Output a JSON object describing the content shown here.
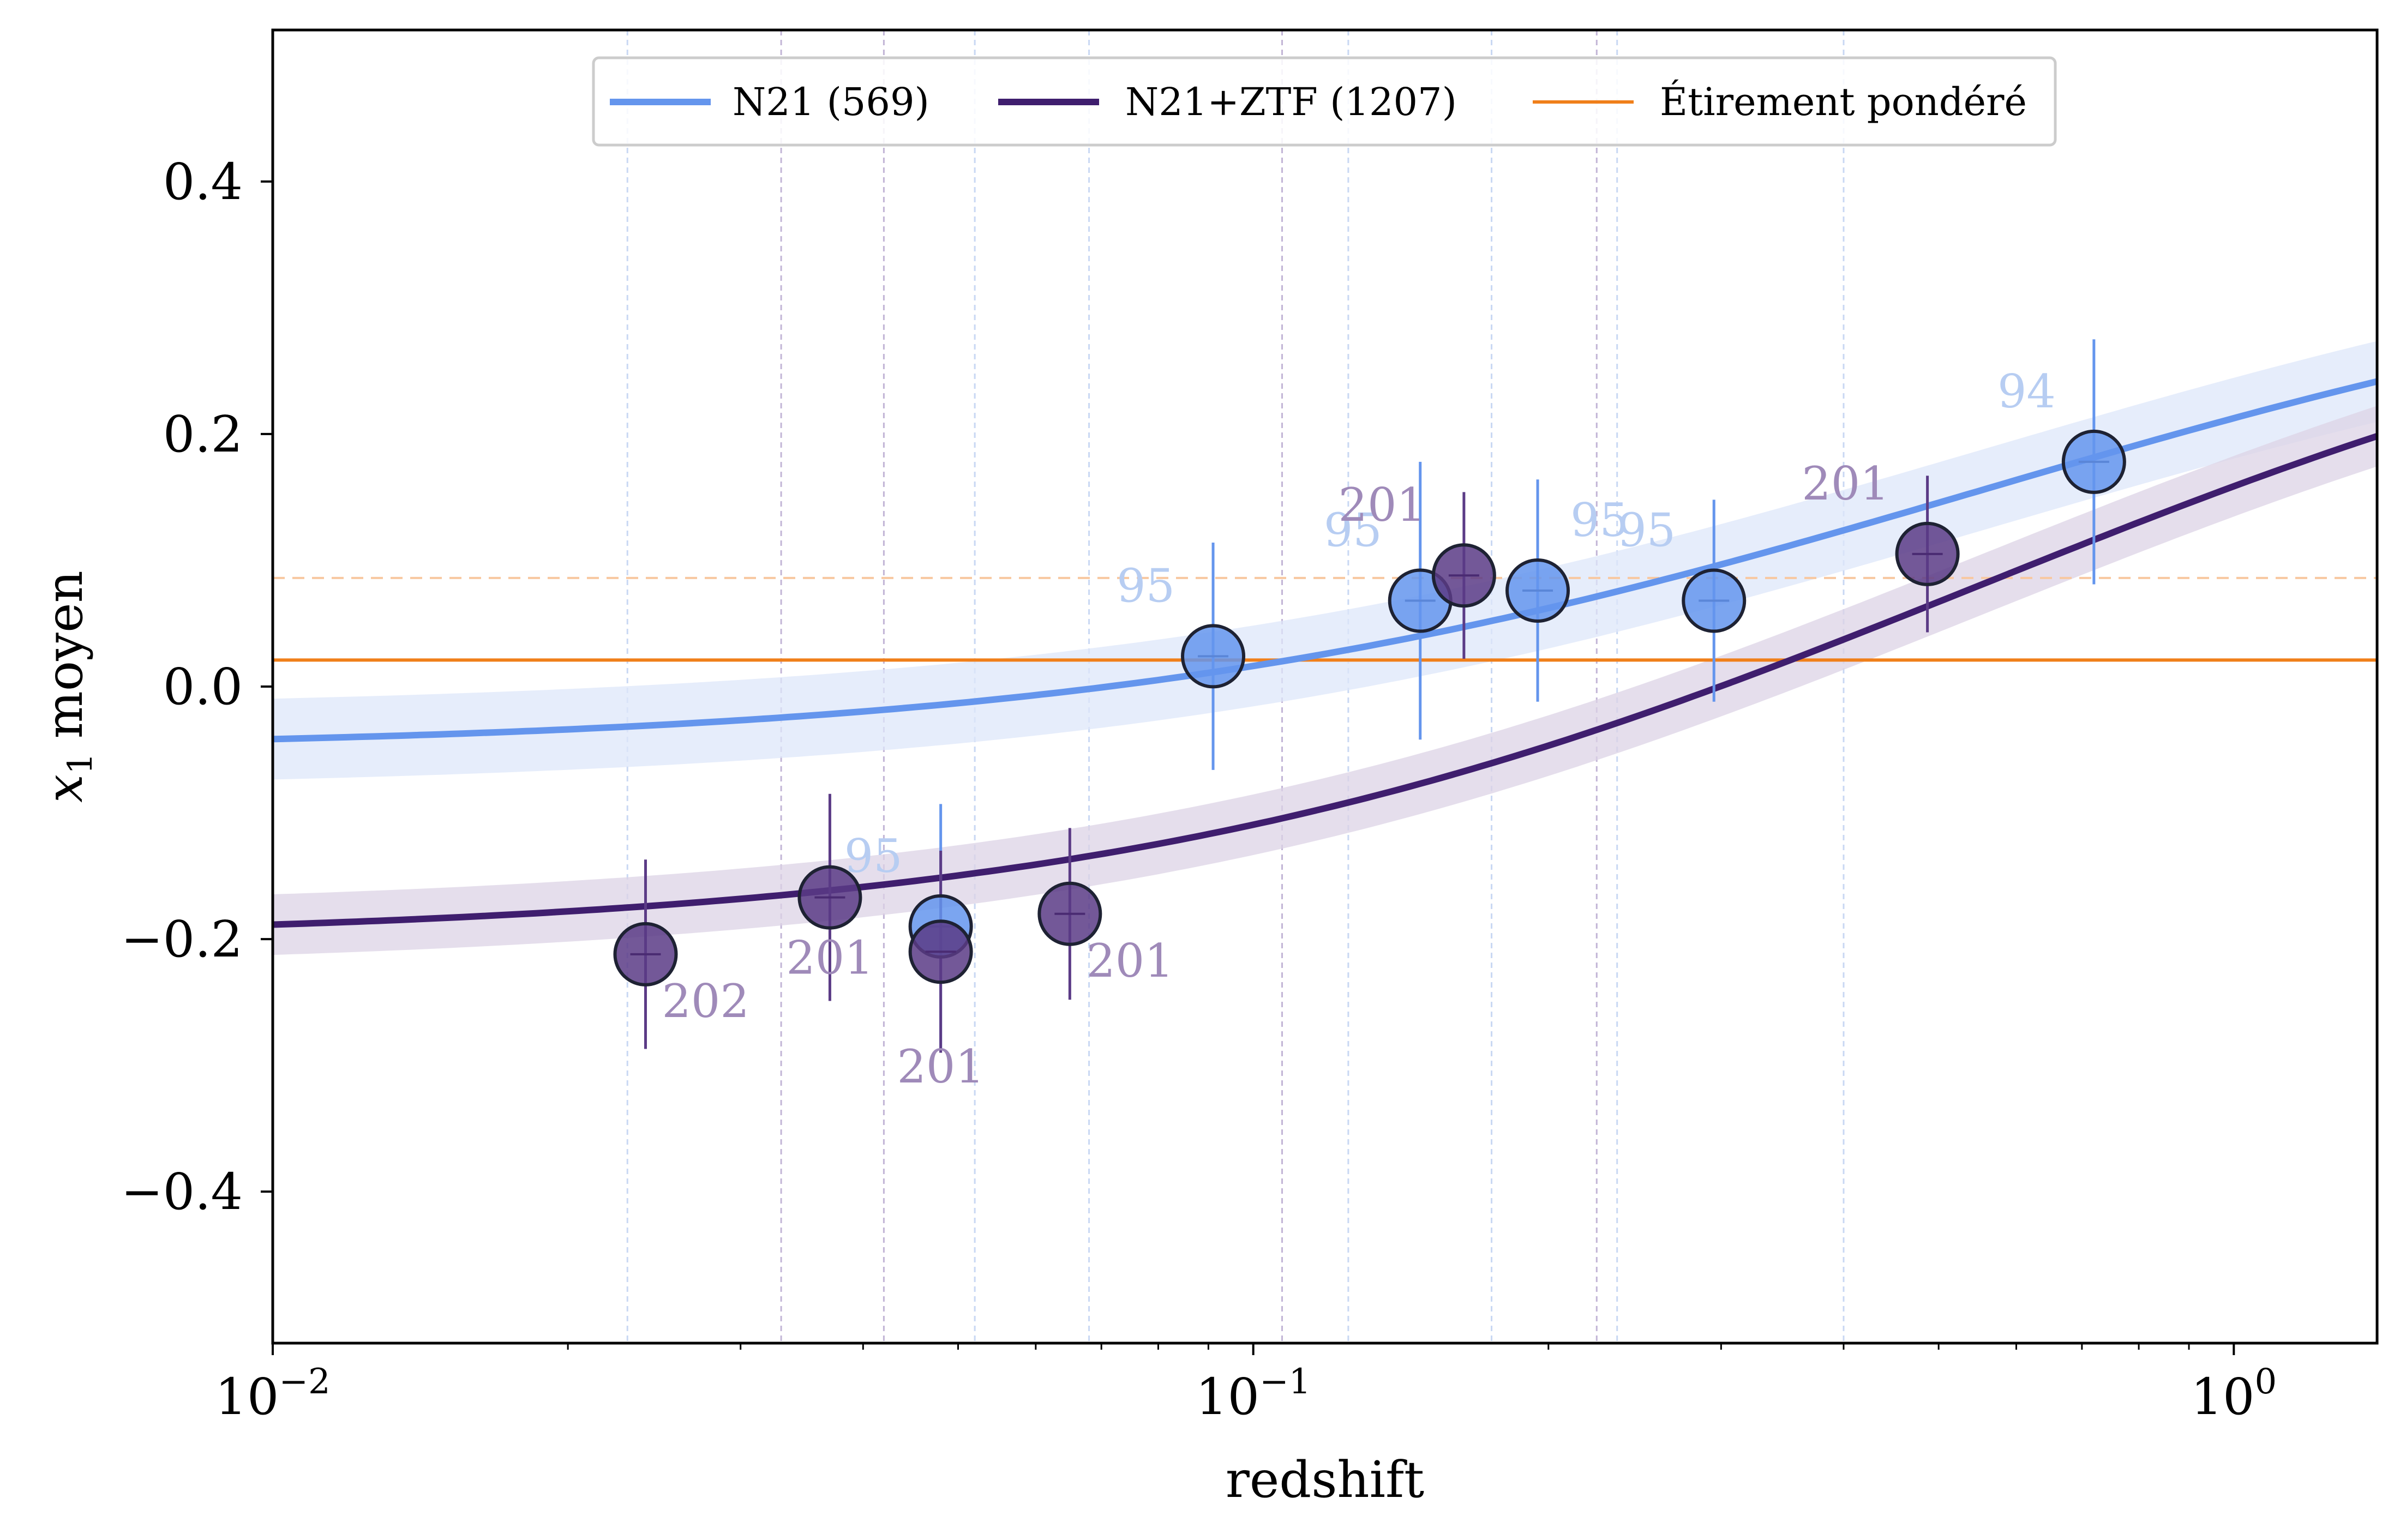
{
  "chart_data": {
    "type": "scatter",
    "title": "",
    "xlabel": "redshift",
    "ylabel": "x1 moyen",
    "ylabel_math": "x",
    "ylabel_sub": "1",
    "ylabel_text": "moyen",
    "x_scale": "log",
    "xlim": [
      0.01,
      1.4
    ],
    "ylim": [
      -0.52,
      0.52
    ],
    "x_ticks": [
      {
        "value": 0.01,
        "base": "10",
        "exp": "−2"
      },
      {
        "value": 0.1,
        "base": "10",
        "exp": "−1"
      },
      {
        "value": 1,
        "base": "10",
        "exp": "0"
      }
    ],
    "y_ticks": [
      {
        "value": 0.4,
        "label": "0.4"
      },
      {
        "value": 0.2,
        "label": "0.2"
      },
      {
        "value": 0.0,
        "label": "0.0"
      },
      {
        "value": -0.2,
        "label": "−0.2"
      },
      {
        "value": -0.4,
        "label": "−0.4"
      }
    ],
    "grid": false,
    "legend_position": "top-center",
    "legend": [
      {
        "label": "N21 (569)",
        "color": "#6495ED",
        "style": "thick"
      },
      {
        "label": "N21+ZTF (1207)",
        "color": "#3F1E6E",
        "style": "thick"
      },
      {
        "label": "Étirement pondéré",
        "color": "#F07F1A",
        "style": "thin"
      }
    ],
    "hlines": [
      {
        "y": 0.021,
        "color": "#F07F1A",
        "style": "solid"
      },
      {
        "y": 0.086,
        "color": "#F8C8A0",
        "style": "dashed"
      }
    ],
    "vlines_n21": [
      0.023,
      0.052,
      0.068,
      0.125,
      0.175,
      0.235,
      0.4
    ],
    "vlines_ztf": [
      0.033,
      0.042,
      0.107,
      0.224
    ],
    "series": [
      {
        "name": "N21 (569)",
        "color": "#6495ED",
        "label_color": "#B7CDF2",
        "curve": {
          "low": -0.05,
          "high": 0.36,
          "x0": 0.55,
          "width": 0.45,
          "band": 0.032
        },
        "points": [
          {
            "x": 0.091,
            "y": 0.024,
            "yerr": 0.09,
            "count": "95",
            "label_pos": "upper-left"
          },
          {
            "x": 0.148,
            "y": 0.068,
            "yerr": 0.11,
            "count": "95",
            "label_pos": "upper-left"
          },
          {
            "x": 0.195,
            "y": 0.076,
            "yerr": 0.088,
            "count": "95",
            "label_pos": "upper-right"
          },
          {
            "x": 0.295,
            "y": 0.068,
            "yerr": 0.08,
            "count": "95",
            "label_pos": "upper-left"
          },
          {
            "x": 0.72,
            "y": 0.178,
            "yerr": 0.097,
            "count": "94",
            "label_pos": "upper-left"
          },
          {
            "x": 0.048,
            "y": -0.19,
            "yerr": 0.097,
            "count": "95",
            "label_pos": "upper-left"
          }
        ]
      },
      {
        "name": "N21+ZTF (1207)",
        "color": "#5B3B86",
        "label_color": "#9F8AB9",
        "curve": {
          "low": -0.2,
          "high": 0.36,
          "x0": 0.55,
          "width": 0.45,
          "band": 0.024
        },
        "points": [
          {
            "x": 0.024,
            "y": -0.212,
            "yerr": 0.075,
            "count": "202",
            "label_pos": "lower-right"
          },
          {
            "x": 0.037,
            "y": -0.167,
            "yerr": 0.082,
            "count": "201",
            "label_pos": "lower-left"
          },
          {
            "x": 0.048,
            "y": -0.21,
            "yerr": 0.08,
            "count": "201",
            "label_pos": "lower"
          },
          {
            "x": 0.065,
            "y": -0.18,
            "yerr": 0.068,
            "count": "201",
            "label_pos": "lower-right"
          },
          {
            "x": 0.164,
            "y": 0.088,
            "yerr": 0.066,
            "count": "201",
            "label_pos": "upper-left"
          },
          {
            "x": 0.487,
            "y": 0.105,
            "yerr": 0.062,
            "count": "201",
            "label_pos": "upper-left"
          }
        ]
      }
    ]
  }
}
